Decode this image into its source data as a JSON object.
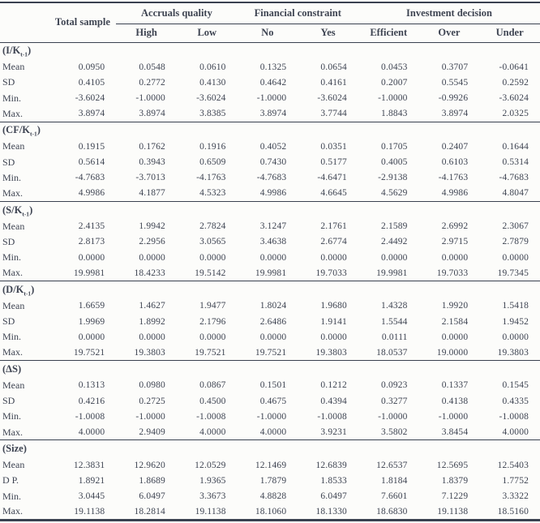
{
  "table": {
    "header": {
      "total_sample": "Total sample",
      "groups": [
        {
          "label": "Accruals quality",
          "span": 2
        },
        {
          "label": "Financial constraint",
          "span": 2
        },
        {
          "label": "Investment decision",
          "span": 3
        }
      ],
      "sub_headers": [
        "High",
        "Low",
        "No",
        "Yes",
        "Efficient",
        "Over",
        "Under"
      ]
    },
    "row_groups": [
      {
        "label": {
          "pre": "(I/K",
          "sub": "t-1",
          "post": ")"
        },
        "rows": [
          {
            "label": "Mean",
            "values": [
              "0.0950",
              "0.0548",
              "0.0610",
              "0.1325",
              "0.0654",
              "0.0453",
              "0.3707",
              "-0.0641"
            ]
          },
          {
            "label": "SD",
            "values": [
              "0.4105",
              "0.2772",
              "0.4130",
              "0.4642",
              "0.4161",
              "0.2007",
              "0.5545",
              "0.2592"
            ]
          },
          {
            "label": "Min.",
            "values": [
              "-3.6024",
              "-1.0000",
              "-3.6024",
              "-1.0000",
              "-3.6024",
              "-1.0000",
              "-0.9926",
              "-3.6024"
            ]
          },
          {
            "label": "Max.",
            "values": [
              "3.8974",
              "3.8974",
              "3.8385",
              "3.8974",
              "3.7744",
              "1.8843",
              "3.8974",
              "2.0325"
            ]
          }
        ]
      },
      {
        "label": {
          "pre": "(CF/K",
          "sub": "t-1",
          "post": ")"
        },
        "rows": [
          {
            "label": "Mean",
            "values": [
              "0.1915",
              "0.1762",
              "0.1916",
              "0.4052",
              "0.0351",
              "0.1705",
              "0.2407",
              "0.1644"
            ]
          },
          {
            "label": "SD",
            "values": [
              "0.5614",
              "0.3943",
              "0.6509",
              "0.7430",
              "0.5177",
              "0.4005",
              "0.6103",
              "0.5314"
            ]
          },
          {
            "label": "Min.",
            "values": [
              "-4.7683",
              "-3.7013",
              "-4.1763",
              "-4.7683",
              "-4.6471",
              "-2.9138",
              "-4.1763",
              "-4.7683"
            ]
          },
          {
            "label": "Max.",
            "values": [
              "4.9986",
              "4.1877",
              "4.5323",
              "4.9986",
              "4.6645",
              "4.5629",
              "4.9986",
              "4.8047"
            ]
          }
        ]
      },
      {
        "label": {
          "pre": "(S/K",
          "sub": "t-1",
          "post": ")"
        },
        "rows": [
          {
            "label": "Mean",
            "values": [
              "2.4135",
              "1.9942",
              "2.7824",
              "3.1247",
              "2.1761",
              "2.1589",
              "2.6992",
              "2.3067"
            ]
          },
          {
            "label": "SD",
            "values": [
              "2.8173",
              "2.2956",
              "3.0565",
              "3.4638",
              "2.6774",
              "2.4492",
              "2.9715",
              "2.7879"
            ]
          },
          {
            "label": "Min.",
            "values": [
              "0.0000",
              "0.0000",
              "0.0000",
              "0.0000",
              "0.0000",
              "0.0000",
              "0.0000",
              "0.0000"
            ]
          },
          {
            "label": "Max.",
            "values": [
              "19.9981",
              "18.4233",
              "19.5142",
              "19.9981",
              "19.7033",
              "19.9981",
              "19.7033",
              "19.7345"
            ]
          }
        ]
      },
      {
        "label": {
          "pre": "(D/K",
          "sub": "t-1",
          "post": ")"
        },
        "rows": [
          {
            "label": "Mean",
            "values": [
              "1.6659",
              "1.4627",
              "1.9477",
              "1.8024",
              "1.9680",
              "1.4328",
              "1.9920",
              "1.5418"
            ]
          },
          {
            "label": "SD",
            "values": [
              "1.9969",
              "1.8992",
              "2.1796",
              "2.6486",
              "1.9141",
              "1.5544",
              "2.1584",
              "1.9452"
            ]
          },
          {
            "label": "Min.",
            "values": [
              "0.0000",
              "0.0000",
              "0.0000",
              "0.0000",
              "0.0000",
              "0.0111",
              "0.0000",
              "0.0000"
            ]
          },
          {
            "label": "Max.",
            "values": [
              "19.7521",
              "19.3803",
              "19.7521",
              "19.7521",
              "19.3803",
              "18.0537",
              "19.0000",
              "19.3803"
            ]
          }
        ]
      },
      {
        "label": {
          "pre": "(ΔS",
          "sub": "",
          "post": ")"
        },
        "rows": [
          {
            "label": "Mean",
            "values": [
              "0.1313",
              "0.0980",
              "0.0867",
              "0.1501",
              "0.1212",
              "0.0923",
              "0.1337",
              "0.1545"
            ]
          },
          {
            "label": "SD",
            "values": [
              "0.4216",
              "0.2725",
              "0.4500",
              "0.4675",
              "0.4394",
              "0.3277",
              "0.4138",
              "0.4335"
            ]
          },
          {
            "label": "Min.",
            "values": [
              "-1.0008",
              "-1.0000",
              "-1.0008",
              "-1.0000",
              "-1.0008",
              "-1.0000",
              "-1.0000",
              "-1.0008"
            ]
          },
          {
            "label": "Max.",
            "values": [
              "4.0000",
              "2.9409",
              "4.0000",
              "4.0000",
              "3.9231",
              "3.5802",
              "3.8454",
              "4.0000"
            ]
          }
        ]
      },
      {
        "label": {
          "pre": "(Size",
          "sub": "",
          "post": ")"
        },
        "rows": [
          {
            "label": "Mean",
            "values": [
              "12.3831",
              "12.9620",
              "12.0529",
              "12.1469",
              "12.6839",
              "12.6537",
              "12.5695",
              "12.5403"
            ]
          },
          {
            "label": "D P.",
            "values": [
              "1.8921",
              "1.8689",
              "1.9365",
              "1.7879",
              "1.8533",
              "1.8184",
              "1.8379",
              "1.7752"
            ]
          },
          {
            "label": "Min.",
            "values": [
              "3.0445",
              "6.0497",
              "3.3673",
              "4.8828",
              "6.0497",
              "7.6601",
              "7.1229",
              "3.3322"
            ]
          },
          {
            "label": "Max.",
            "values": [
              "19.1138",
              "18.2814",
              "19.1138",
              "18.1060",
              "18.1330",
              "18.6830",
              "19.1138",
              "18.5160"
            ]
          }
        ]
      }
    ]
  }
}
